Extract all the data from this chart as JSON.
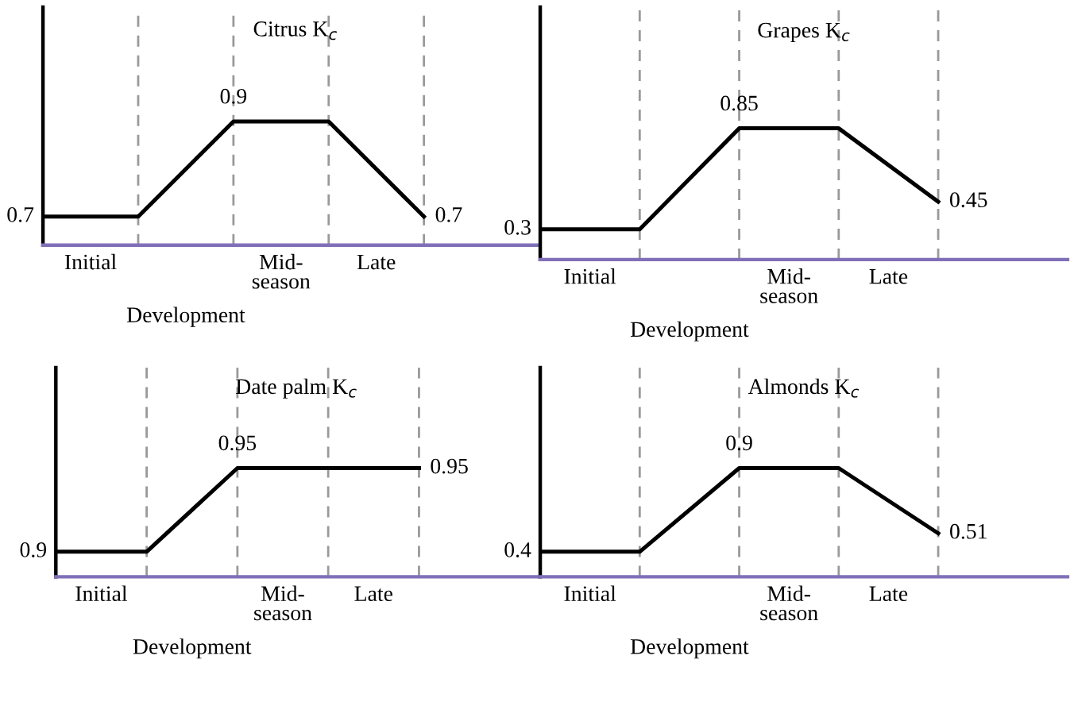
{
  "chart_data": [
    {
      "type": "line",
      "title": "Citrus K$_{c}$",
      "categories": [
        null,
        null,
        null,
        null,
        null
      ],
      "values": [
        0.7,
        0.7,
        0.9,
        0.9,
        0.7
      ],
      "value_labels": [
        "0.7",
        null,
        "0.9",
        null,
        "0.7"
      ],
      "color": "#000000",
      "grid": "x",
      "annotations": [
        "Initial",
        "Development",
        "Mid-\nseason",
        "Late"
      ]
    },
    {
      "type": "line",
      "title": "Grapes K$_{c}$",
      "categories": [
        null,
        null,
        null,
        null,
        null
      ],
      "values": [
        0.3,
        0.3,
        0.85,
        0.85,
        0.45
      ],
      "value_labels": [
        "0.3",
        null,
        "0.85",
        null,
        "0.45"
      ],
      "color": "#000000",
      "grid": "x",
      "annotations": [
        "Initial",
        "Development",
        "Mid-\nseason",
        "Late"
      ]
    },
    {
      "type": "line",
      "title": "Date palm K$_{c}$",
      "categories": [
        null,
        null,
        null,
        null,
        null
      ],
      "values": [
        0.9,
        0.9,
        0.95,
        0.95,
        0.95
      ],
      "value_labels": [
        "0.9",
        null,
        "0.95",
        null,
        "0.95"
      ],
      "color": "#000000",
      "grid": "x",
      "annotations": [
        "Initial",
        "Development",
        "Mid-\nseason",
        "Late"
      ]
    },
    {
      "type": "line",
      "title": "Almonds K$_{c}$",
      "categories": [
        null,
        null,
        null,
        null,
        null
      ],
      "values": [
        0.4,
        0.4,
        0.9,
        0.9,
        0.51
      ],
      "value_labels": [
        "0.4",
        null,
        "0.9",
        null,
        "0.51"
      ],
      "color": "#000000",
      "grid": "x",
      "annotations": [
        "Initial",
        "Development",
        "Mid-\nseason",
        "Late"
      ]
    }
  ]
}
